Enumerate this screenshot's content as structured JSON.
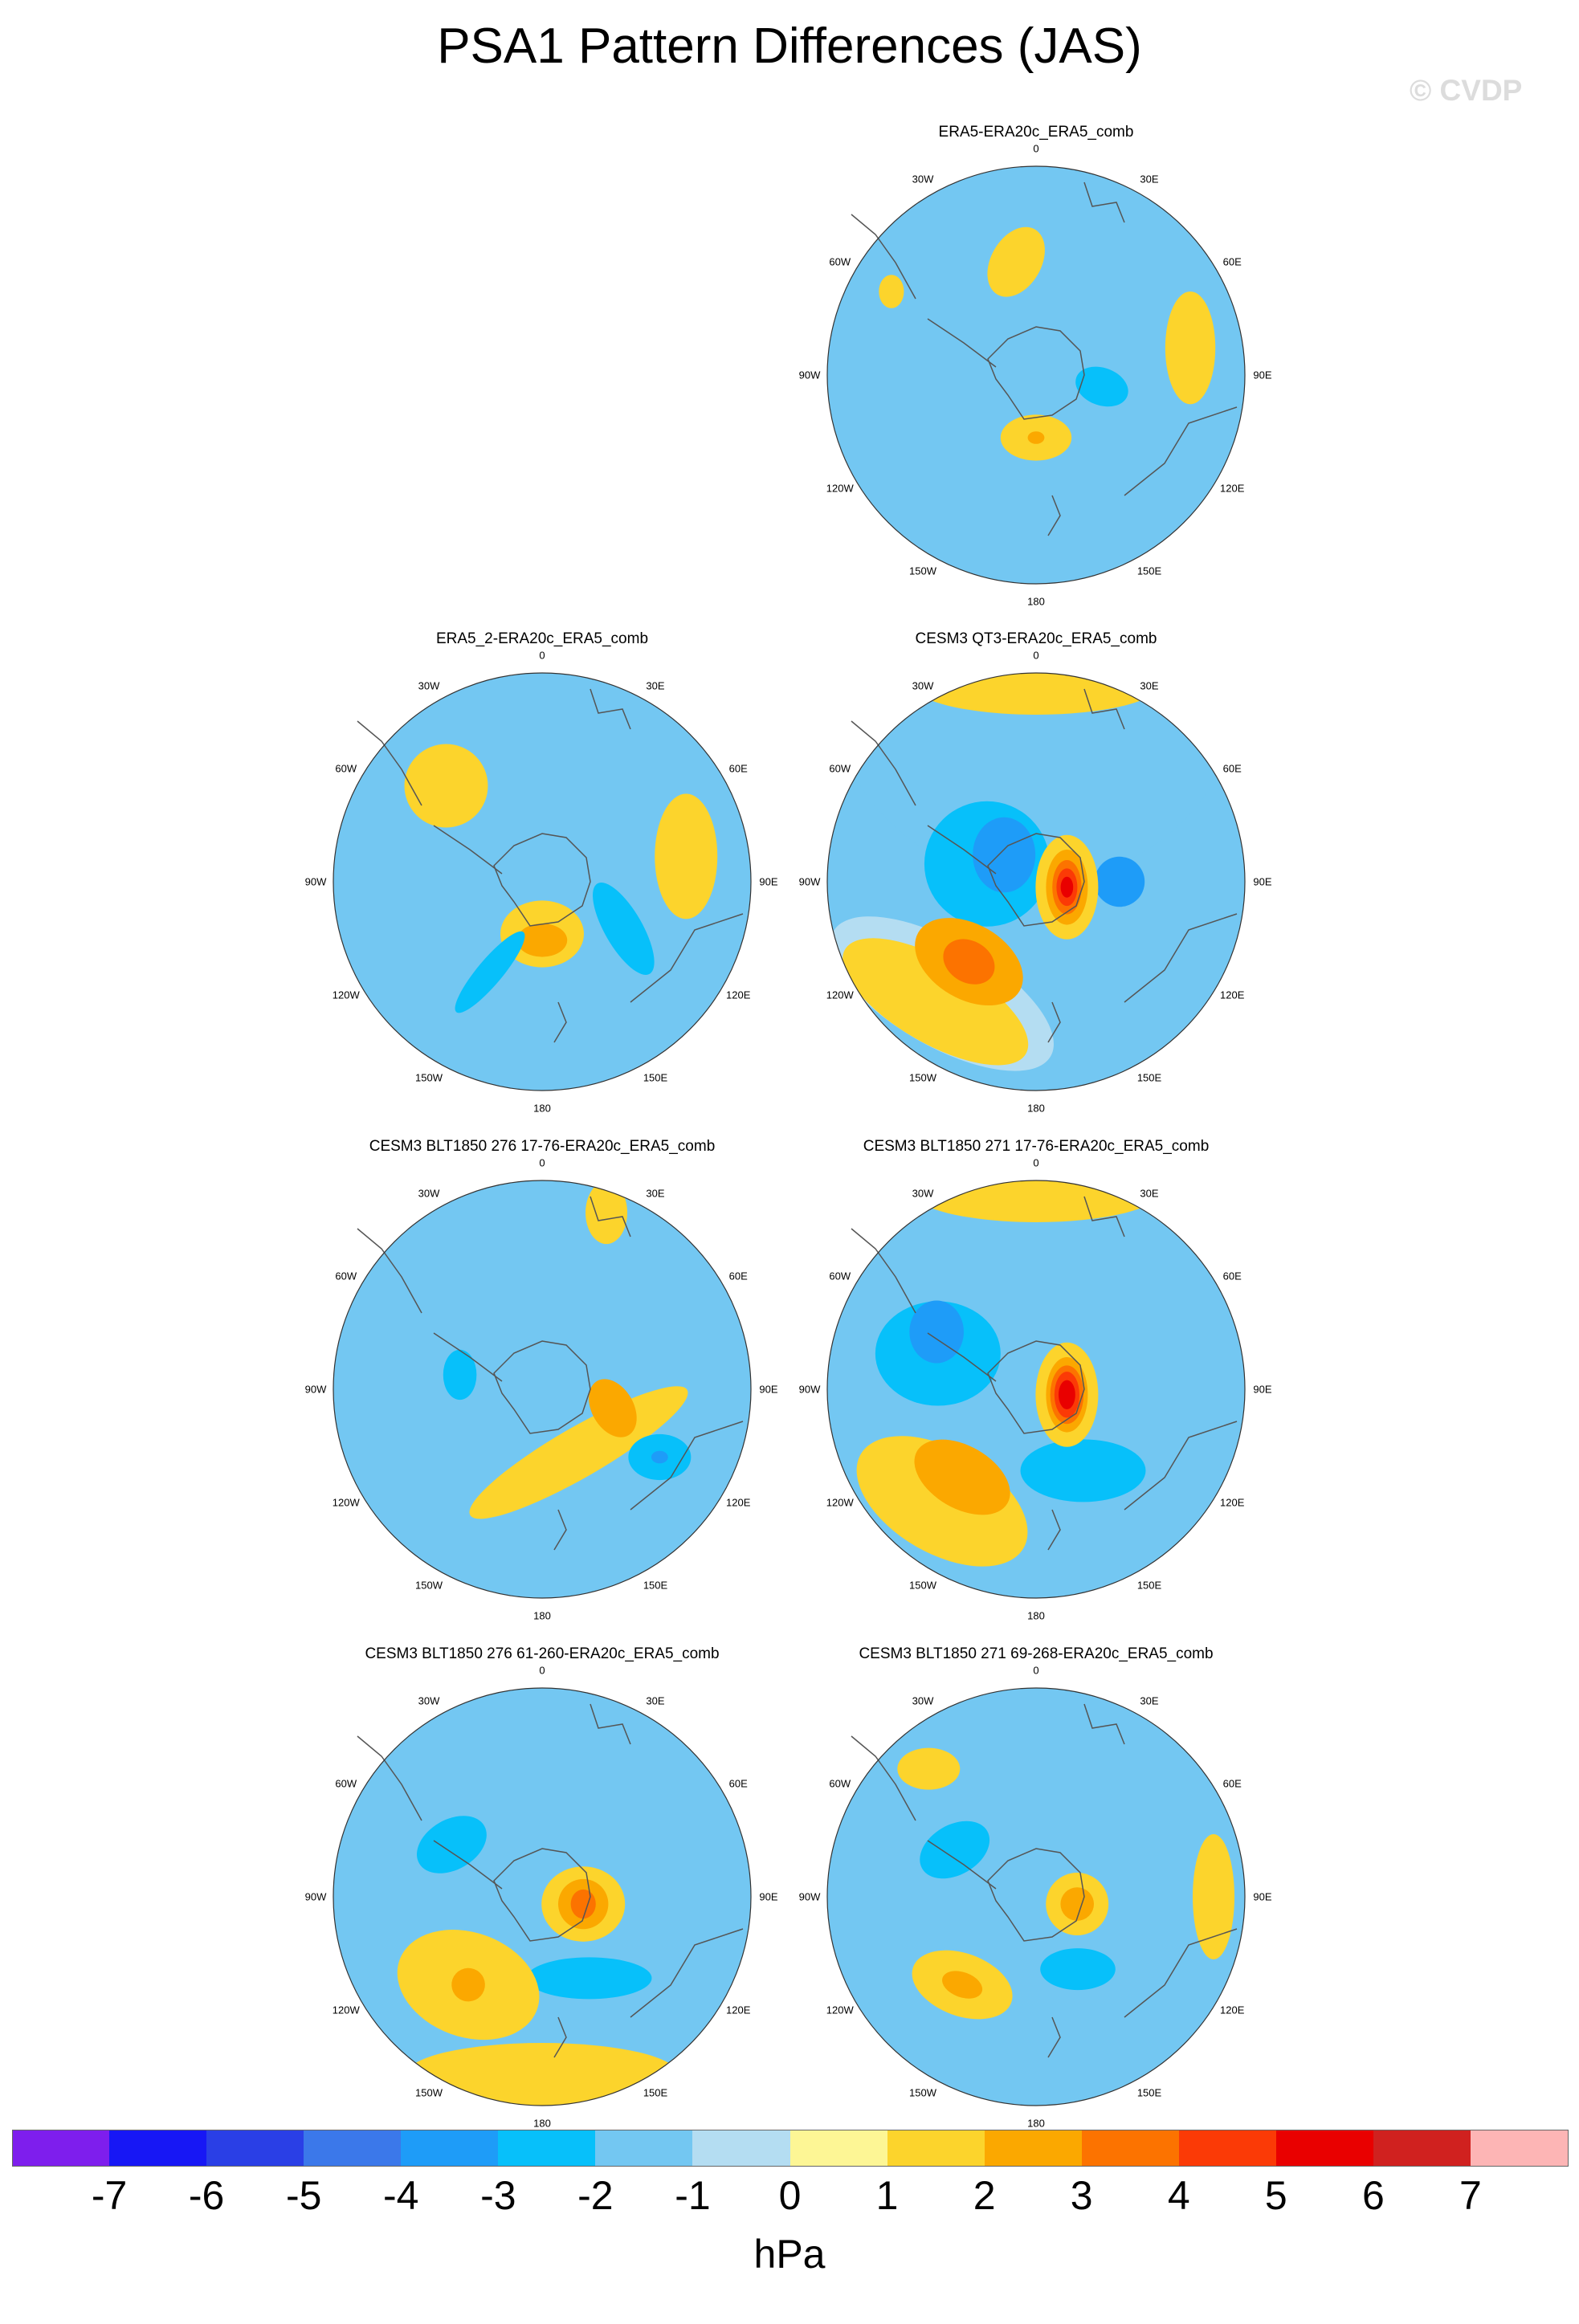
{
  "figure": {
    "title": "PSA1 Pattern Differences (JAS)",
    "watermark": "© CVDP",
    "units": "hPa"
  },
  "longitude_labels": [
    "0",
    "30E",
    "60E",
    "90E",
    "120E",
    "150E",
    "180",
    "150W",
    "120W",
    "90W",
    "60W",
    "30W"
  ],
  "colorbar": {
    "colors": [
      "#7e1eed",
      "#1717f5",
      "#2a3fe6",
      "#3b78ea",
      "#1e9cf8",
      "#07c0fa",
      "#73c7f2",
      "#b4ddf2",
      "#fdf695",
      "#fcd42c",
      "#fba800",
      "#fc7300",
      "#fb3a06",
      "#e90000",
      "#d0211f",
      "#fdb5b5"
    ],
    "ticks": [
      "-7",
      "-6",
      "-5",
      "-4",
      "-3",
      "-2",
      "-1",
      "0",
      "1",
      "2",
      "3",
      "4",
      "5",
      "6",
      "7"
    ]
  },
  "panels": [
    {
      "title": "ERA5-ERA20c_ERA5_comb",
      "anomalies": [
        {
          "level": 1,
          "lon": 180,
          "colat": 0.3,
          "rx": 0.17,
          "ry": 0.11,
          "rot": 0
        },
        {
          "level": 2,
          "lon": 180,
          "colat": 0.3,
          "rx": 0.04,
          "ry": 0.03,
          "rot": 0
        },
        {
          "level": -2,
          "lon": 100,
          "colat": 0.32,
          "rx": 0.13,
          "ry": 0.09,
          "rot": 20
        },
        {
          "level": 1,
          "lon": 80,
          "colat": 0.75,
          "rx": 0.12,
          "ry": 0.27,
          "rot": 0
        },
        {
          "level": 1,
          "lon": -10,
          "colat": 0.55,
          "rx": 0.12,
          "ry": 0.18,
          "rot": 30
        },
        {
          "level": 1,
          "lon": -60,
          "colat": 0.8,
          "rx": 0.06,
          "ry": 0.08,
          "rot": 0
        }
      ]
    },
    {
      "title": "ERA5_2-ERA20c_ERA5_comb",
      "anomalies": [
        {
          "level": 1,
          "lon": 180,
          "colat": 0.25,
          "rx": 0.2,
          "ry": 0.16,
          "rot": 0
        },
        {
          "level": 2,
          "lon": 180,
          "colat": 0.28,
          "rx": 0.12,
          "ry": 0.08,
          "rot": 0
        },
        {
          "level": -2,
          "lon": 120,
          "colat": 0.45,
          "rx": 0.25,
          "ry": 0.09,
          "rot": 60
        },
        {
          "level": -2,
          "lon": -150,
          "colat": 0.5,
          "rx": 0.25,
          "ry": 0.06,
          "rot": -50
        },
        {
          "level": 1,
          "lon": 80,
          "colat": 0.7,
          "rx": 0.15,
          "ry": 0.3,
          "rot": 0
        },
        {
          "level": 1,
          "lon": -45,
          "colat": 0.65,
          "rx": 0.2,
          "ry": 0.2,
          "rot": 0
        }
      ]
    },
    {
      "title": "CESM3 QT3-ERA20c_ERA5_comb",
      "anomalies": [
        {
          "level": -1,
          "lon": 0,
          "colat": 1.0,
          "rx": 1.0,
          "ry": 1.0,
          "rot": 0
        },
        {
          "level": -2,
          "lon": -70,
          "colat": 0.25,
          "rx": 0.3,
          "ry": 0.3,
          "rot": 0
        },
        {
          "level": -3,
          "lon": -50,
          "colat": 0.2,
          "rx": 0.15,
          "ry": 0.18,
          "rot": 0
        },
        {
          "level": -3,
          "lon": 90,
          "colat": 0.4,
          "rx": 0.12,
          "ry": 0.12,
          "rot": 0
        },
        {
          "level": 0,
          "lon": -140,
          "colat": 0.7,
          "rx": 0.6,
          "ry": 0.25,
          "rot": 30
        },
        {
          "level": 1,
          "lon": -140,
          "colat": 0.75,
          "rx": 0.5,
          "ry": 0.2,
          "rot": 30
        },
        {
          "level": 2,
          "lon": -140,
          "colat": 0.5,
          "rx": 0.28,
          "ry": 0.18,
          "rot": 30
        },
        {
          "level": 3,
          "lon": -140,
          "colat": 0.5,
          "rx": 0.13,
          "ry": 0.1,
          "rot": 30
        },
        {
          "level": 1,
          "lon": 100,
          "colat": 0.15,
          "rx": 0.15,
          "ry": 0.25,
          "rot": 0
        },
        {
          "level": 2,
          "lon": 100,
          "colat": 0.15,
          "rx": 0.1,
          "ry": 0.18,
          "rot": 0
        },
        {
          "level": 3,
          "lon": 100,
          "colat": 0.15,
          "rx": 0.07,
          "ry": 0.13,
          "rot": 0
        },
        {
          "level": 4,
          "lon": 100,
          "colat": 0.15,
          "rx": 0.05,
          "ry": 0.09,
          "rot": 0
        },
        {
          "level": 5,
          "lon": 100,
          "colat": 0.15,
          "rx": 0.03,
          "ry": 0.05,
          "rot": 0
        },
        {
          "level": 1,
          "lon": 0,
          "colat": 0.95,
          "rx": 0.6,
          "ry": 0.15,
          "rot": 0
        }
      ]
    },
    {
      "title": "CESM3 BLT1850 276 17-76-ERA20c_ERA5_comb",
      "anomalies": [
        {
          "level": 1,
          "lon": 150,
          "colat": 0.35,
          "rx": 0.6,
          "ry": 0.12,
          "rot": -30
        },
        {
          "level": 2,
          "lon": 105,
          "colat": 0.35,
          "rx": 0.1,
          "ry": 0.15,
          "rot": -30
        },
        {
          "level": -2,
          "lon": 120,
          "colat": 0.65,
          "rx": 0.15,
          "ry": 0.11,
          "rot": 0
        },
        {
          "level": -3,
          "lon": 120,
          "colat": 0.65,
          "rx": 0.04,
          "ry": 0.03,
          "rot": 0
        },
        {
          "level": -2,
          "lon": -80,
          "colat": 0.4,
          "rx": 0.08,
          "ry": 0.12,
          "rot": 0
        },
        {
          "level": 1,
          "lon": 20,
          "colat": 0.9,
          "rx": 0.1,
          "ry": 0.15,
          "rot": 0
        }
      ]
    },
    {
      "title": "CESM3 BLT1850 271 17-76-ERA20c_ERA5_comb",
      "anomalies": [
        {
          "level": -2,
          "lon": -70,
          "colat": 0.5,
          "rx": 0.3,
          "ry": 0.25,
          "rot": 0
        },
        {
          "level": -3,
          "lon": -60,
          "colat": 0.55,
          "rx": 0.13,
          "ry": 0.15,
          "rot": 0
        },
        {
          "level": -2,
          "lon": 150,
          "colat": 0.45,
          "rx": 0.3,
          "ry": 0.15,
          "rot": 0
        },
        {
          "level": 1,
          "lon": -140,
          "colat": 0.7,
          "rx": 0.45,
          "ry": 0.25,
          "rot": 30
        },
        {
          "level": 2,
          "lon": -140,
          "colat": 0.55,
          "rx": 0.25,
          "ry": 0.15,
          "rot": 30
        },
        {
          "level": 1,
          "lon": 100,
          "colat": 0.15,
          "rx": 0.15,
          "ry": 0.25,
          "rot": 0
        },
        {
          "level": 2,
          "lon": 100,
          "colat": 0.15,
          "rx": 0.1,
          "ry": 0.18,
          "rot": 0
        },
        {
          "level": 3,
          "lon": 100,
          "colat": 0.15,
          "rx": 0.08,
          "ry": 0.14,
          "rot": 0
        },
        {
          "level": 4,
          "lon": 100,
          "colat": 0.15,
          "rx": 0.06,
          "ry": 0.11,
          "rot": 0
        },
        {
          "level": 5,
          "lon": 100,
          "colat": 0.15,
          "rx": 0.04,
          "ry": 0.07,
          "rot": 0
        },
        {
          "level": 1,
          "lon": 0,
          "colat": 0.95,
          "rx": 0.6,
          "ry": 0.15,
          "rot": 0
        }
      ]
    },
    {
      "title": "CESM3 BLT1850 276 61-260-ERA20c_ERA5_comb",
      "anomalies": [
        {
          "level": 1,
          "lon": 100,
          "colat": 0.2,
          "rx": 0.2,
          "ry": 0.18,
          "rot": 0
        },
        {
          "level": 2,
          "lon": 100,
          "colat": 0.2,
          "rx": 0.12,
          "ry": 0.12,
          "rot": 0
        },
        {
          "level": 3,
          "lon": 100,
          "colat": 0.2,
          "rx": 0.06,
          "ry": 0.07,
          "rot": 0
        },
        {
          "level": -2,
          "lon": -60,
          "colat": 0.5,
          "rx": 0.18,
          "ry": 0.12,
          "rot": -30
        },
        {
          "level": -2,
          "lon": 150,
          "colat": 0.45,
          "rx": 0.3,
          "ry": 0.1,
          "rot": 0
        },
        {
          "level": 1,
          "lon": -140,
          "colat": 0.55,
          "rx": 0.35,
          "ry": 0.25,
          "rot": 20
        },
        {
          "level": 2,
          "lon": -140,
          "colat": 0.55,
          "rx": 0.08,
          "ry": 0.08,
          "rot": 20
        },
        {
          "level": 1,
          "lon": 180,
          "colat": 0.85,
          "rx": 0.65,
          "ry": 0.15,
          "rot": 0
        }
      ]
    },
    {
      "title": "CESM3 BLT1850 271 69-268-ERA20c_ERA5_comb",
      "anomalies": [
        {
          "level": 1,
          "lon": 100,
          "colat": 0.2,
          "rx": 0.15,
          "ry": 0.15,
          "rot": 0
        },
        {
          "level": 2,
          "lon": 100,
          "colat": 0.2,
          "rx": 0.08,
          "ry": 0.08,
          "rot": 0
        },
        {
          "level": -2,
          "lon": -60,
          "colat": 0.45,
          "rx": 0.18,
          "ry": 0.12,
          "rot": -30
        },
        {
          "level": -2,
          "lon": 150,
          "colat": 0.4,
          "rx": 0.18,
          "ry": 0.1,
          "rot": 0
        },
        {
          "level": 1,
          "lon": -140,
          "colat": 0.55,
          "rx": 0.25,
          "ry": 0.15,
          "rot": 20
        },
        {
          "level": 2,
          "lon": -140,
          "colat": 0.55,
          "rx": 0.1,
          "ry": 0.06,
          "rot": 20
        },
        {
          "level": 1,
          "lon": 90,
          "colat": 0.85,
          "rx": 0.1,
          "ry": 0.3,
          "rot": 0
        },
        {
          "level": 1,
          "lon": -40,
          "colat": 0.8,
          "rx": 0.15,
          "ry": 0.1,
          "rot": 0
        }
      ]
    }
  ]
}
